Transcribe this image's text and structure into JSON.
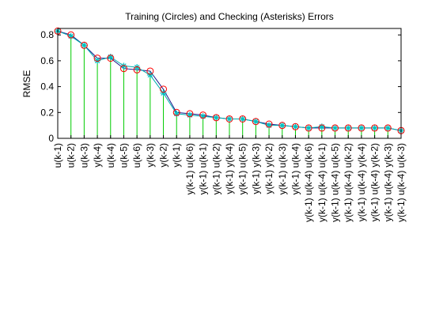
{
  "chart_data": {
    "type": "line",
    "title": "Training (Circles) and Checking (Asterisks) Errors",
    "xlabel": "",
    "ylabel": "RMSE",
    "ylim": [
      0,
      0.85
    ],
    "yticks": [
      "0",
      "0.2",
      "0.4",
      "0.6",
      "0.8"
    ],
    "ytick_values": [
      0,
      0.2,
      0.4,
      0.6,
      0.8
    ],
    "grid": false,
    "legend": "none",
    "categories": [
      [
        "u(k-1)"
      ],
      [
        "u(k-2)"
      ],
      [
        "u(k-3)"
      ],
      [
        "y(k-4)"
      ],
      [
        "u(k-4)"
      ],
      [
        "u(k-5)"
      ],
      [
        "u(k-6)"
      ],
      [
        "y(k-3)"
      ],
      [
        "y(k-2)"
      ],
      [
        "y(k-1)"
      ],
      [
        "y(k-1) u(k-6)"
      ],
      [
        "y(k-1) u(k-1)"
      ],
      [
        "y(k-1) u(k-2)"
      ],
      [
        "y(k-1) y(k-4)"
      ],
      [
        "y(k-1) u(k-5)"
      ],
      [
        "y(k-1) y(k-3)"
      ],
      [
        "y(k-1) y(k-2)"
      ],
      [
        "y(k-1) u(k-3)"
      ],
      [
        "y(k-1) u(k-4)"
      ],
      [
        "y(k-1) u(k-4) u(k-6)"
      ],
      [
        "y(k-1) u(k-4) u(k-1)"
      ],
      [
        "y(k-1) u(k-4) u(k-5)"
      ],
      [
        "y(k-1) u(k-4) u(k-2)"
      ],
      [
        "y(k-1) u(k-4) y(k-4)"
      ],
      [
        "y(k-1) u(k-4) y(k-2)"
      ],
      [
        "y(k-1) u(k-4) y(k-3)"
      ],
      [
        "y(k-1) u(k-4) u(k-3)"
      ]
    ],
    "series": [
      {
        "marker": "circle",
        "values": [
          0.83,
          0.8,
          0.72,
          0.62,
          0.62,
          0.54,
          0.53,
          0.52,
          0.38,
          0.2,
          0.19,
          0.18,
          0.16,
          0.15,
          0.15,
          0.13,
          0.11,
          0.1,
          0.09,
          0.08,
          0.08,
          0.08,
          0.08,
          0.08,
          0.08,
          0.08,
          0.06
        ]
      },
      {
        "marker": "asterisk",
        "values": [
          0.83,
          0.79,
          0.72,
          0.6,
          0.63,
          0.56,
          0.55,
          0.49,
          0.35,
          0.19,
          0.18,
          0.17,
          0.16,
          0.15,
          0.15,
          0.13,
          0.1,
          0.1,
          0.09,
          0.08,
          0.09,
          0.08,
          0.08,
          0.08,
          0.08,
          0.08,
          0.06
        ]
      }
    ]
  },
  "colors": {
    "stems": "#00cc00",
    "training_line": "#1a1a8c",
    "training_marker": "#ff0000",
    "checking_line": "#00b0b0",
    "checking_marker": "#00c0c0",
    "axes": "#000000"
  }
}
